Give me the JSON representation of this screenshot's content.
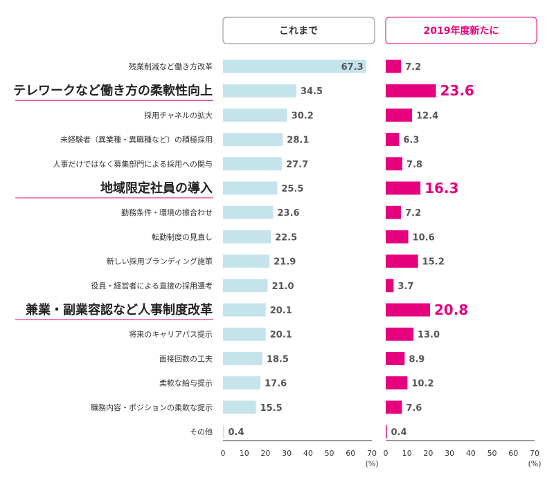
{
  "chart_data": {
    "type": "bar",
    "orientation": "horizontal",
    "unit": "(%)",
    "xlim": [
      0,
      70
    ],
    "xticks": [
      0,
      10,
      20,
      30,
      40,
      50,
      60,
      70
    ],
    "categories": [
      "残業削減など働き方改革",
      "テレワークなど働き方の柔軟性向上",
      "採用チャネルの拡大",
      "未経験者（異業種・異職種など）の積極採用",
      "人事だけではなく募集部門による採用への関与",
      "地域限定社員の導入",
      "勤務条件・環境の擦合わせ",
      "転勤制度の見直し",
      "新しい採用ブランディング施策",
      "役員・経営者による直接の採用選考",
      "兼業・副業容認など人事制度改革",
      "将来のキャリアパス提示",
      "面接回数の工夫",
      "柔軟な給与提示",
      "職務内容・ポジションの柔軟な提示",
      "その他"
    ],
    "highlighted": [
      1,
      5,
      10
    ],
    "series": [
      {
        "name": "これまで",
        "color": "#c5e3eb",
        "values": [
          67.3,
          34.5,
          30.2,
          28.1,
          27.7,
          25.5,
          23.6,
          22.5,
          21.9,
          21.0,
          20.1,
          20.1,
          18.5,
          17.6,
          15.5,
          0.4
        ],
        "labels": [
          "67.3",
          "34.5",
          "30.2",
          "28.1",
          "27.7",
          "25.5",
          "23.6",
          "22.5",
          "21.9",
          "21.0",
          "20.1",
          "20.1",
          "18.5",
          "17.6",
          "15.5",
          "0.4"
        ]
      },
      {
        "name": "2019年度新たに",
        "color": "#e6007e",
        "values": [
          7.2,
          23.6,
          12.4,
          6.3,
          7.8,
          16.3,
          7.2,
          10.6,
          15.2,
          3.7,
          20.8,
          13.0,
          8.9,
          10.2,
          7.6,
          0.4
        ],
        "labels": [
          "7.2",
          "23.6",
          "12.4",
          "6.3",
          "7.8",
          "16.3",
          "7.2",
          "10.6",
          "15.2",
          "3.7",
          "20.8",
          "13.0",
          "8.9",
          "10.2",
          "7.6",
          "0.4"
        ]
      }
    ]
  }
}
